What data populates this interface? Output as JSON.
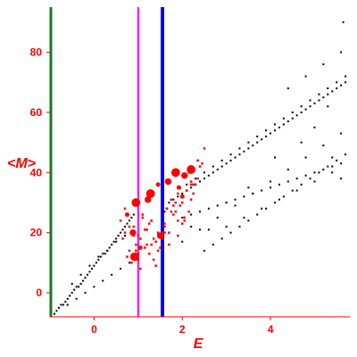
{
  "chart_data": {
    "type": "scatter",
    "xlabel": "E",
    "ylabel": "<M>",
    "xlim": [
      -1.0,
      5.8
    ],
    "ylim": [
      -8,
      95
    ],
    "xticks": [
      0,
      2,
      4
    ],
    "yticks": [
      0,
      20,
      40,
      60,
      80
    ],
    "grid": false,
    "colors": {
      "axis": "#ff0000",
      "tick_label": "#ff0000",
      "axis_label": "#ff0000",
      "background_points": "#000000",
      "highlight_points": "#ff0000"
    },
    "vertical_lines": [
      {
        "x": -0.98,
        "color": "#1a7a1a"
      },
      {
        "x": 1.0,
        "color": "#ff00ff"
      },
      {
        "x": 1.55,
        "color": "#0000ff"
      }
    ],
    "series": [
      {
        "color": "#000000",
        "marker": "dot",
        "x": [
          -0.9,
          -0.85,
          -0.8,
          -0.75,
          -0.7,
          -0.65,
          -0.6,
          -0.55,
          -0.5,
          -0.45,
          -0.4,
          -0.35,
          -0.3,
          -0.25,
          -0.2,
          -0.15,
          -0.1,
          -0.05,
          0.0,
          0.05,
          0.1,
          0.15,
          0.2,
          0.25,
          0.3,
          0.35,
          0.4,
          0.45,
          0.5,
          0.55,
          0.6,
          0.65,
          0.7,
          0.75,
          0.8,
          0.85,
          0.9,
          -0.6,
          -0.4,
          -0.2,
          0.0,
          0.2,
          0.4,
          0.6,
          0.8,
          -0.5,
          -0.3,
          -0.1,
          0.1,
          0.3,
          0.5,
          0.7,
          0.9,
          1.7,
          1.8,
          1.9,
          2.0,
          2.1,
          2.2,
          2.3,
          2.4,
          2.5,
          2.6,
          2.7,
          2.8,
          2.9,
          3.0,
          3.1,
          3.2,
          3.3,
          3.4,
          3.5,
          3.6,
          3.7,
          3.8,
          3.9,
          4.0,
          4.1,
          4.2,
          4.3,
          4.4,
          4.5,
          4.6,
          4.7,
          4.8,
          4.9,
          5.0,
          5.1,
          5.2,
          5.3,
          5.4,
          5.5,
          5.6,
          5.7,
          2.0,
          2.2,
          2.4,
          2.6,
          2.8,
          3.0,
          3.2,
          3.4,
          3.6,
          3.8,
          4.0,
          4.2,
          4.4,
          4.6,
          4.8,
          5.0,
          5.2,
          5.4,
          5.6,
          2.5,
          2.7,
          2.9,
          3.1,
          3.3,
          3.5,
          3.7,
          3.9,
          4.1,
          4.3,
          4.5,
          4.7,
          4.9,
          5.1,
          5.3,
          5.5,
          5.7,
          2.1,
          2.3,
          2.5,
          2.7,
          2.9,
          3.1,
          3.3,
          3.5,
          3.7,
          3.9,
          4.1,
          4.3,
          4.5,
          4.7,
          4.9,
          5.1,
          5.3,
          5.5,
          3.0,
          3.4,
          3.8,
          4.2,
          4.6,
          5.0,
          5.4,
          4.4,
          4.8,
          5.2,
          5.6,
          5.0,
          5.4,
          5.6,
          5.7,
          2.0,
          2.4,
          2.8,
          3.2,
          3.6,
          4.0,
          4.4,
          4.8,
          5.2,
          5.6,
          1.6,
          1.9,
          2.2,
          2.6,
          3.0,
          3.5,
          4.1,
          4.7,
          5.3,
          5.65
        ],
        "y": [
          -7,
          -6,
          -5,
          -4,
          -4,
          -3,
          -2,
          -1,
          0,
          1,
          2,
          2,
          3,
          4,
          5,
          6,
          7,
          8,
          9,
          10,
          11,
          12,
          13,
          13,
          14,
          15,
          16,
          17,
          18,
          19,
          20,
          21,
          22,
          23,
          24,
          25,
          26,
          -4,
          -2,
          0,
          2,
          4,
          6,
          8,
          10,
          3,
          6,
          9,
          12,
          14,
          17,
          19,
          22,
          30,
          31,
          32,
          33,
          34,
          35,
          36,
          37,
          38,
          39,
          40,
          41,
          42,
          43,
          44,
          45,
          46,
          47,
          48,
          49,
          50,
          51,
          52,
          53,
          54,
          55,
          56,
          57,
          58,
          59,
          60,
          61,
          62,
          63,
          64,
          65,
          66,
          67,
          68,
          69,
          70,
          25,
          26,
          27,
          28,
          29,
          30,
          31,
          32,
          33,
          34,
          35,
          36,
          37,
          38,
          39,
          40,
          41,
          42,
          43,
          14,
          16,
          18,
          20,
          22,
          24,
          26,
          28,
          30,
          32,
          34,
          36,
          38,
          40,
          42,
          44,
          46,
          36,
          38,
          40,
          42,
          44,
          46,
          48,
          50,
          52,
          54,
          56,
          58,
          60,
          62,
          64,
          66,
          68,
          70,
          22,
          25,
          28,
          31,
          34,
          37,
          40,
          68,
          72,
          76,
          80,
          55,
          45,
          38,
          72,
          17,
          21,
          25,
          29,
          33,
          37,
          41,
          45,
          49,
          53,
          27,
          24,
          22,
          21,
          30,
          35,
          45,
          50,
          62,
          90
        ]
      },
      {
        "color": "#ff0000",
        "marker": "dot",
        "x": [
          0.6,
          0.65,
          0.7,
          0.75,
          0.8,
          0.85,
          0.9,
          0.95,
          1.0,
          1.05,
          1.1,
          1.15,
          1.2,
          1.25,
          1.3,
          1.35,
          1.4,
          1.45,
          1.5,
          1.55,
          1.6,
          1.65,
          1.7,
          1.75,
          1.8,
          1.85,
          1.9,
          1.95,
          2.0,
          2.05,
          2.1,
          2.15,
          2.2,
          2.25,
          2.3,
          2.35,
          2.4,
          0.8,
          0.9,
          1.0,
          1.1,
          1.2,
          1.3,
          1.4,
          1.5,
          1.6,
          1.7,
          1.8,
          1.9,
          2.0,
          2.1,
          2.2,
          0.75,
          0.95,
          1.15,
          1.35,
          1.55,
          1.75,
          1.95,
          2.15,
          2.35,
          0.85,
          1.05,
          1.25,
          1.45,
          1.65,
          1.85,
          2.05,
          2.25,
          2.45,
          0.7,
          1.0,
          1.3,
          1.6,
          1.9,
          2.2,
          2.5
        ],
        "y": [
          24,
          18,
          20,
          12,
          14,
          10,
          22,
          16,
          19,
          8,
          26,
          15,
          21,
          13,
          24,
          11,
          17,
          20,
          15,
          18,
          23,
          28,
          20,
          31,
          26,
          27,
          24,
          29,
          30,
          25,
          34,
          27,
          31,
          33,
          36,
          38,
          42,
          22,
          19,
          11,
          25,
          16,
          24,
          9,
          19,
          22,
          16,
          29,
          33,
          23,
          34,
          37,
          26,
          14,
          21,
          18,
          20,
          27,
          35,
          40,
          44,
          12,
          18,
          23,
          14,
          28,
          30,
          24,
          36,
          43,
          28,
          13,
          16,
          20,
          19,
          36,
          48
        ]
      },
      {
        "color": "#ff0000",
        "marker": "big",
        "x": [
          0.75,
          0.88,
          0.95,
          1.05,
          1.22,
          1.28,
          1.45,
          1.68,
          1.85,
          1.92,
          2.05,
          2.2,
          2.0,
          1.5,
          0.92
        ],
        "y": [
          26,
          20,
          30,
          15,
          31,
          33,
          36,
          37,
          40,
          35,
          39,
          41,
          32,
          19,
          12
        ]
      }
    ]
  }
}
